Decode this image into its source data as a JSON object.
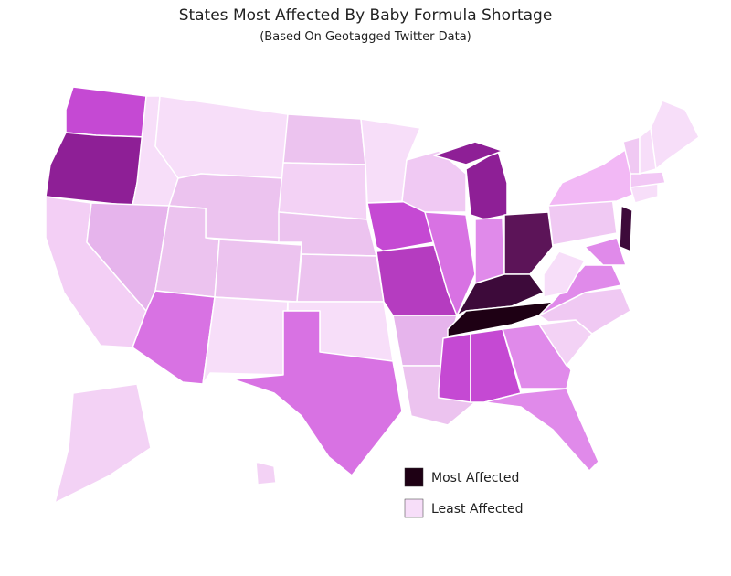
{
  "title": "States Most Affected By Baby Formula Shortage",
  "subtitle": "(Based On Geotagged Twitter Data)",
  "regions": [
    {
      "color": "#c549d3"
    },
    {
      "color": "#8e1f96"
    },
    {
      "color": "#f3cff5"
    },
    {
      "color": "#f7def9"
    },
    {
      "color": "#e6b4ec"
    },
    {
      "color": "#f7def9"
    },
    {
      "color": "#ecc3ef"
    },
    {
      "color": "#ecc3ef"
    },
    {
      "color": "#d872e3"
    },
    {
      "color": "#ecc3ef"
    },
    {
      "color": "#f7def9"
    },
    {
      "color": "#ecc3ef"
    },
    {
      "color": "#f3d2f5"
    },
    {
      "color": "#ecc3ef"
    },
    {
      "color": "#ecc3ef"
    },
    {
      "color": "#f7def9"
    },
    {
      "color": "#d872e3"
    },
    {
      "color": "#f7def9"
    },
    {
      "color": "#c549d3"
    },
    {
      "color": "#b53cc0"
    },
    {
      "color": "#e6b4ec"
    },
    {
      "color": "#ecc3ef"
    },
    {
      "color": "#f0c9f3"
    },
    {
      "color": "#d872e3"
    },
    {
      "color": "#8e1f96"
    },
    {
      "color": "#8e1f96"
    },
    {
      "color": "#e08aea"
    },
    {
      "color": "#5c1458"
    },
    {
      "color": "#3d0a3a"
    },
    {
      "color": "#1e0014"
    },
    {
      "color": "#c549d3"
    },
    {
      "color": "#c549d3"
    },
    {
      "color": "#e08aea"
    },
    {
      "color": "#e08aea"
    },
    {
      "color": "#f3d2f5"
    },
    {
      "color": "#f0c9f3"
    },
    {
      "color": "#e08aea"
    },
    {
      "color": "#f7def9"
    },
    {
      "color": "#f0c9f3"
    },
    {
      "color": "#f2b8f5"
    },
    {
      "color": "#e08aea"
    },
    {
      "color": "#3d0a3a"
    },
    {
      "color": "#f7def9"
    },
    {
      "color": "#f2c8f5"
    },
    {
      "color": "#f0c9f3"
    },
    {
      "color": "#f7def9"
    },
    {
      "color": "#f7def9"
    },
    {
      "color": "#f3d2f5"
    },
    {
      "color": "#f3d2f5"
    }
  ],
  "legend": [
    {
      "label": "Most Affected",
      "color": "#1e0014"
    },
    {
      "label": "Least Affected",
      "color": "#f7def9"
    }
  ]
}
